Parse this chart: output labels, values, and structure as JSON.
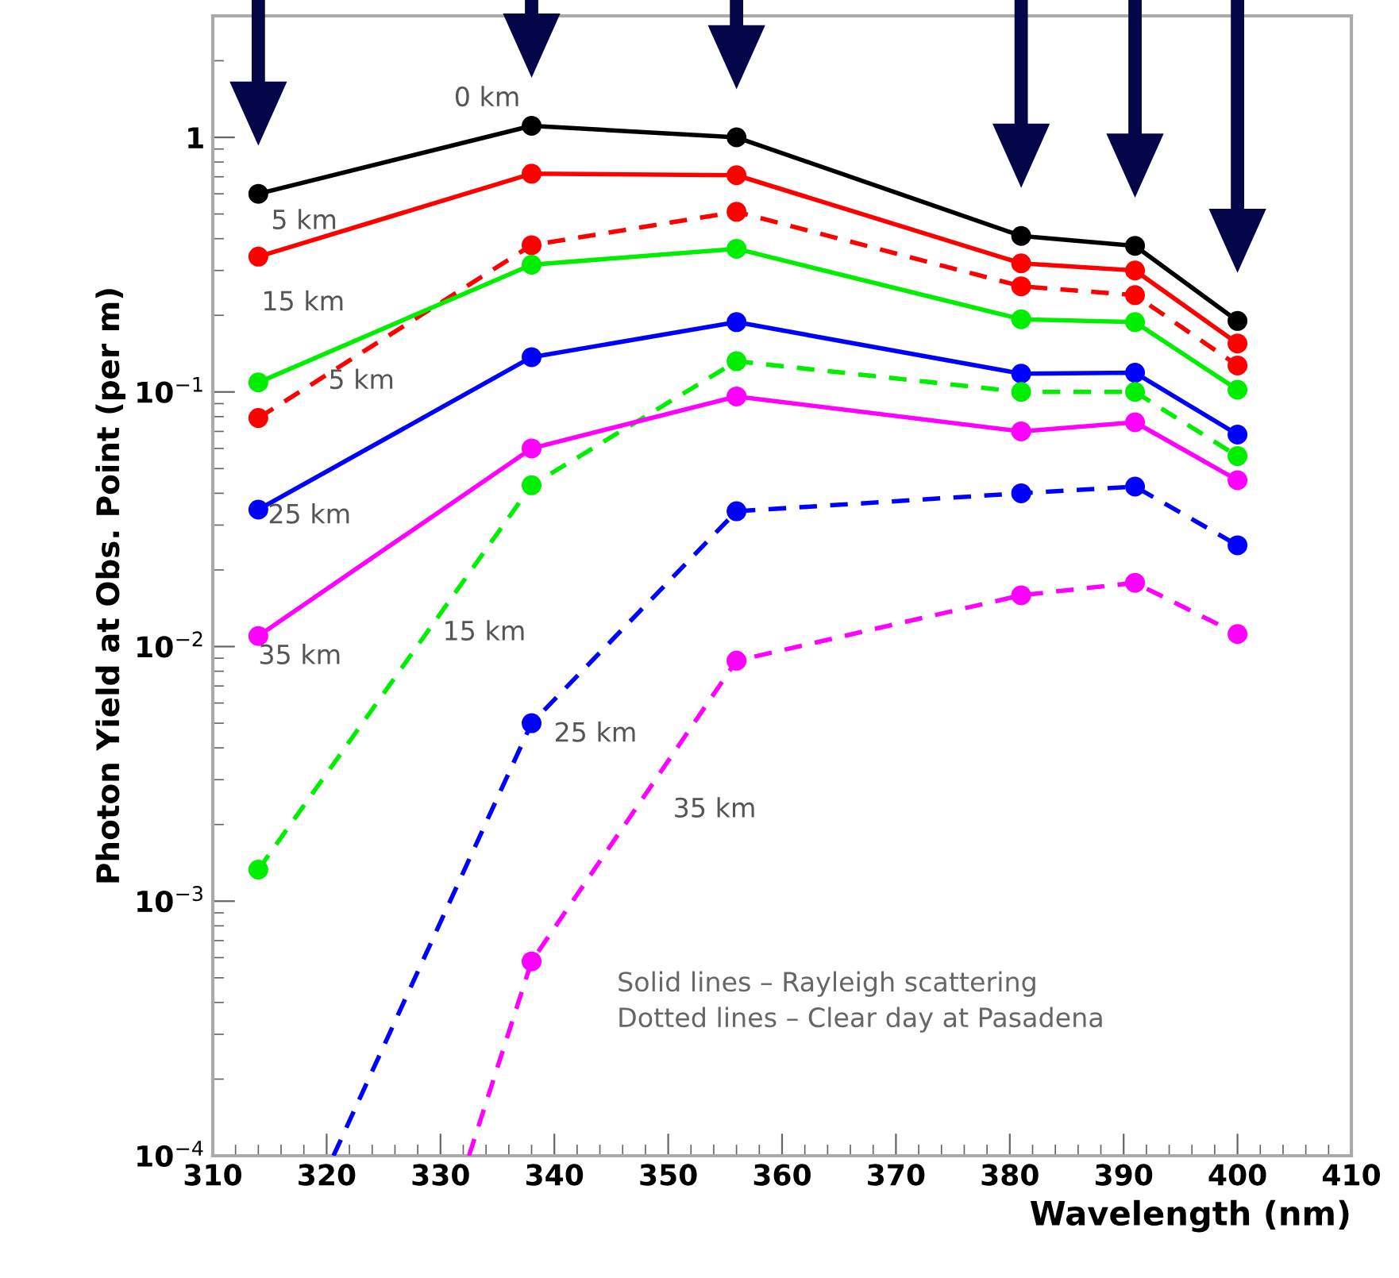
{
  "chart_data": {
    "type": "line",
    "xlabel": "Wavelength (nm)",
    "ylabel": "Photon Yield at Obs. Point (per m)",
    "x": [
      314,
      338,
      356,
      381,
      391,
      400
    ],
    "series": [
      {
        "name": "0 km",
        "color": "#000000",
        "line_style": "solid",
        "values": [
          0.6,
          1.11,
          1.0,
          0.41,
          0.375,
          0.19
        ]
      },
      {
        "name": "5 km",
        "color": "#ff0000",
        "line_style": "solid",
        "values": [
          0.34,
          0.72,
          0.71,
          0.32,
          0.3,
          0.155
        ]
      },
      {
        "name": "5 km",
        "color": "#ff0000",
        "line_style": "dashed",
        "values": [
          0.079,
          0.377,
          0.51,
          0.26,
          0.24,
          0.127
        ]
      },
      {
        "name": "15 km",
        "color": "#00ee00",
        "line_style": "solid",
        "values": [
          0.109,
          0.316,
          0.365,
          0.193,
          0.188,
          0.102
        ]
      },
      {
        "name": "25 km",
        "color": "#0000ff",
        "line_style": "solid",
        "values": [
          0.0345,
          0.137,
          0.188,
          0.118,
          0.119,
          0.068
        ]
      },
      {
        "name": "15 km",
        "color": "#00ee00",
        "line_style": "dashed",
        "values": [
          0.00133,
          0.043,
          0.132,
          0.1,
          0.1,
          0.056
        ]
      },
      {
        "name": "35 km",
        "color": "#ff00ff",
        "line_style": "solid",
        "values": [
          0.011,
          0.06,
          0.096,
          0.07,
          0.076,
          0.045
        ]
      },
      {
        "name": "25 km",
        "color": "#0000ff",
        "line_style": "dashed",
        "x": [
          320.6,
          338,
          356,
          381,
          391,
          400
        ],
        "values": [
          0.0001,
          0.005,
          0.034,
          0.04,
          0.0425,
          0.025
        ]
      },
      {
        "name": "35 km",
        "color": "#ff00ff",
        "line_style": "dashed",
        "x": [
          332.5,
          338,
          356,
          381,
          391,
          400
        ],
        "values": [
          0.0001,
          0.00058,
          0.0088,
          0.0159,
          0.0178,
          0.0112
        ]
      }
    ],
    "log": "y",
    "marker": "circle",
    "xlim": [
      310,
      410
    ],
    "xticks": [
      310,
      320,
      330,
      340,
      350,
      360,
      370,
      380,
      390,
      400,
      410
    ],
    "ylim": [
      0.0001,
      3
    ],
    "yticks": [
      {
        "value": 0.0001,
        "label": "10$^{−4}$"
      },
      {
        "value": 0.001,
        "label": "10$^{−3}$"
      },
      {
        "value": 0.01,
        "label": "10$^{−2}$"
      },
      {
        "value": 0.1,
        "label": "10$^{−1}$"
      },
      {
        "value": 1,
        "label": "1"
      }
    ],
    "grid": false,
    "legend": false,
    "annotations": [
      "Solid lines – Rayleigh scattering\nDotted lines – Clear day at Pasadena"
    ]
  }
}
